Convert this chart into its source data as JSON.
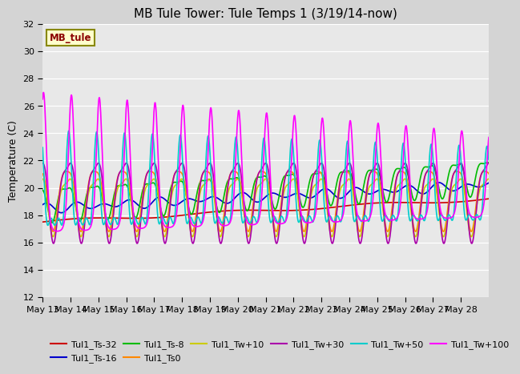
{
  "title": "MB Tule Tower: Tule Temps 1 (3/19/14-now)",
  "ylabel": "Temperature (C)",
  "station_label": "MB_tule",
  "ylim": [
    12,
    32
  ],
  "yticks": [
    12,
    14,
    16,
    18,
    20,
    22,
    24,
    26,
    28,
    30,
    32
  ],
  "xtick_labels": [
    "May 13",
    "May 14",
    "May 15",
    "May 16",
    "May 17",
    "May 18",
    "May 19",
    "May 20",
    "May 21",
    "May 22",
    "May 23",
    "May 24",
    "May 25",
    "May 26",
    "May 27",
    "May 28"
  ],
  "series_order": [
    "Tul1_Ts-32",
    "Tul1_Ts-16",
    "Tul1_Ts-8",
    "Tul1_Ts0",
    "Tul1_Tw+10",
    "Tul1_Tw+30",
    "Tul1_Tw+50",
    "Tul1_Tw+100"
  ],
  "series": {
    "Tul1_Ts-32": {
      "color": "#cc0000",
      "lw": 1.2
    },
    "Tul1_Ts-16": {
      "color": "#0000cc",
      "lw": 1.2
    },
    "Tul1_Ts-8": {
      "color": "#00bb00",
      "lw": 1.2
    },
    "Tul1_Ts0": {
      "color": "#ff8800",
      "lw": 1.2
    },
    "Tul1_Tw+10": {
      "color": "#cccc00",
      "lw": 1.2
    },
    "Tul1_Tw+30": {
      "color": "#aa00aa",
      "lw": 1.2
    },
    "Tul1_Tw+50": {
      "color": "#00cccc",
      "lw": 1.2
    },
    "Tul1_Tw+100": {
      "color": "#ff00ff",
      "lw": 1.2
    }
  },
  "fig_facecolor": "#d4d4d4",
  "plot_facecolor": "#e8e8e8",
  "title_fontsize": 11,
  "label_fontsize": 9,
  "tick_fontsize": 8
}
